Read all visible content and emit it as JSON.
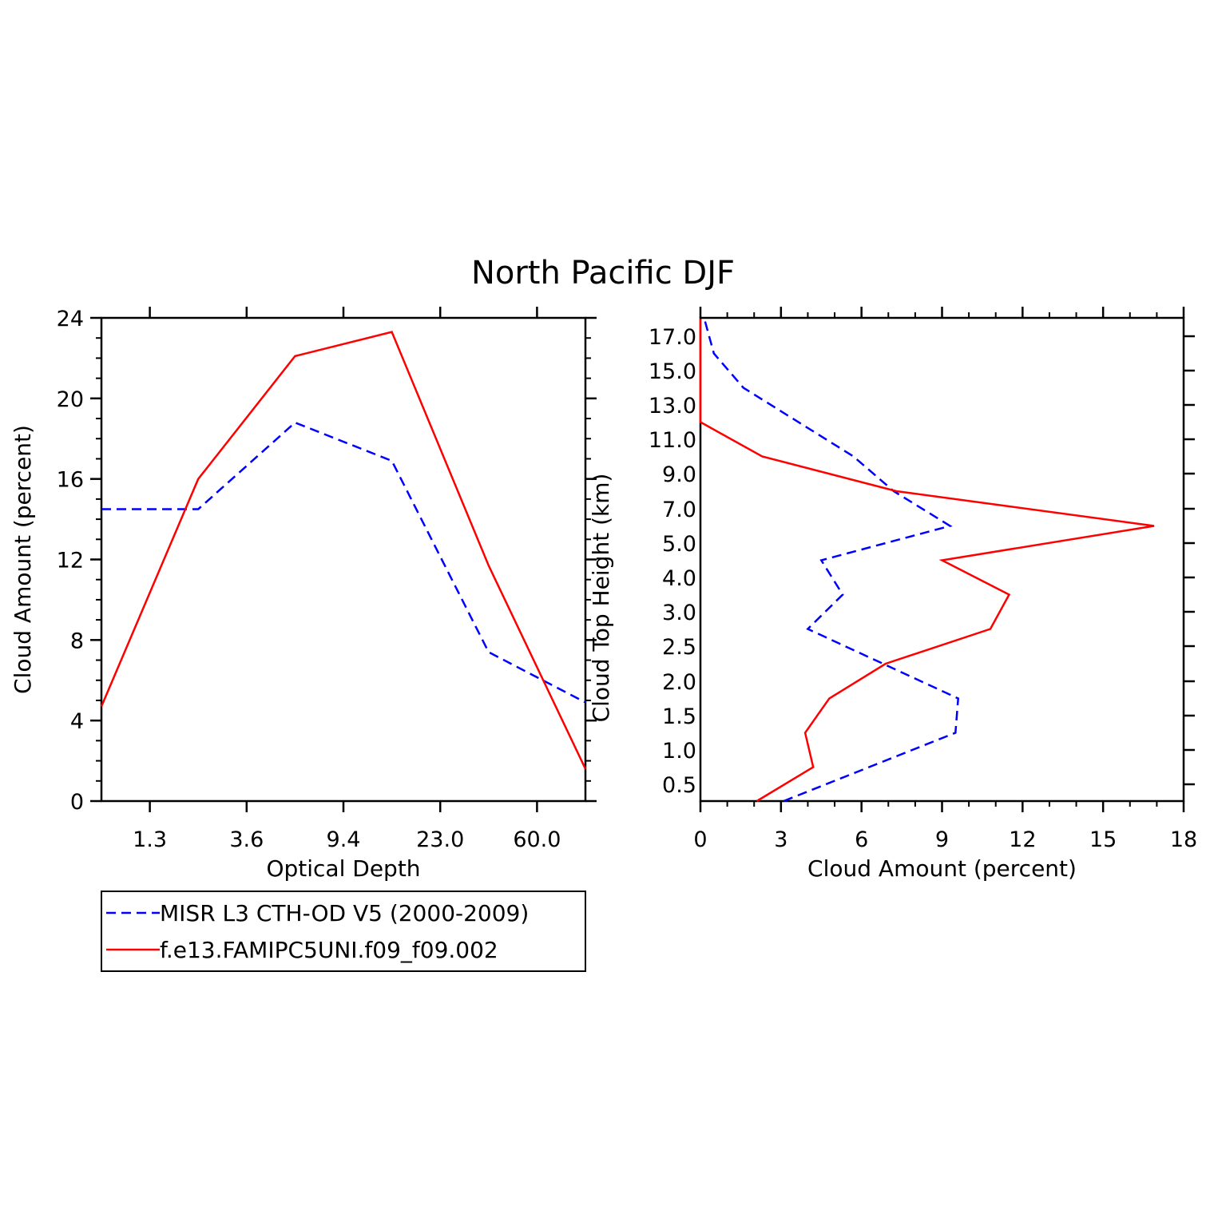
{
  "title": "North Pacific DJF",
  "colors": {
    "series_obs": "#0000ff",
    "series_model": "#ff0000",
    "axis": "#000000"
  },
  "legend": {
    "items": [
      {
        "label": "MISR L3 CTH-OD V5 (2000-2009)",
        "color": "#0000ff",
        "style": "dashed"
      },
      {
        "label": "f.e13.FAMIPC5UNI.f09_f09.002",
        "color": "#ff0000",
        "style": "solid"
      }
    ]
  },
  "chart_data": [
    {
      "type": "line",
      "xlabel": "Optical Depth",
      "ylabel": "Cloud Amount (percent)",
      "x_categories": [
        "0.15",
        "1.3",
        "2.5",
        "3.6",
        "6.5",
        "9.4",
        "15.7",
        "23.0",
        "41.5",
        "60.0",
        "80.0"
      ],
      "x_tick_labels": [
        "1.3",
        "3.6",
        "9.4",
        "23.0",
        "60.0"
      ],
      "y_ticks": [
        "0",
        "4",
        "8",
        "12",
        "16",
        "20",
        "24"
      ],
      "ylim": [
        0,
        24
      ],
      "series": [
        {
          "name": "MISR L3 CTH-OD V5 (2000-2009)",
          "style": "dashed",
          "color": "#0000ff",
          "points": [
            [
              "0.15",
              14.5
            ],
            [
              "2.5",
              14.5
            ],
            [
              "6.5",
              18.8
            ],
            [
              "15.7",
              16.9
            ],
            [
              "41.5",
              7.4
            ],
            [
              "80.0",
              4.9
            ]
          ]
        },
        {
          "name": "f.e13.FAMIPC5UNI.f09_f09.002",
          "style": "solid",
          "color": "#ff0000",
          "points": [
            [
              "0.15",
              4.7
            ],
            [
              "2.5",
              16.0
            ],
            [
              "6.5",
              22.1
            ],
            [
              "15.7",
              23.3
            ],
            [
              "41.5",
              11.7
            ],
            [
              "80.0",
              1.6
            ]
          ]
        }
      ]
    },
    {
      "type": "line",
      "orientation": "vertical",
      "xlabel": "Cloud Amount (percent)",
      "ylabel": "Cloud Top Height (km)",
      "x_ticks": [
        "0",
        "3",
        "6",
        "9",
        "12",
        "15",
        "18"
      ],
      "xlim": [
        0,
        18
      ],
      "y_categories": [
        "0.0",
        "0.5",
        "1.0",
        "1.5",
        "2.0",
        "2.5",
        "3.0",
        "4.0",
        "5.0",
        "7.0",
        "9.0",
        "11.0",
        "13.0",
        "15.0",
        "17.0"
      ],
      "y_tick_labels": [
        "0.5",
        "1.0",
        "1.5",
        "2.0",
        "2.5",
        "3.0",
        "4.0",
        "5.0",
        "7.0",
        "9.0",
        "11.0",
        "13.0",
        "15.0",
        "17.0"
      ],
      "series": [
        {
          "name": "MISR L3 CTH-OD V5 (2000-2009)",
          "style": "dashed",
          "color": "#0000ff",
          "points": [
            [
              3.1,
              0.0
            ],
            [
              9.5,
              1.25
            ],
            [
              9.6,
              1.75
            ],
            [
              4.0,
              2.75
            ],
            [
              5.3,
              3.5
            ],
            [
              4.5,
              4.5
            ],
            [
              9.3,
              6.0
            ],
            [
              7.2,
              8.0
            ],
            [
              5.7,
              10.0
            ],
            [
              1.6,
              14.0
            ],
            [
              0.5,
              16.0
            ],
            [
              0.15,
              18.0
            ]
          ]
        },
        {
          "name": "f.e13.FAMIPC5UNI.f09_f09.002",
          "style": "solid",
          "color": "#ff0000",
          "points": [
            [
              2.1,
              0.0
            ],
            [
              4.2,
              0.75
            ],
            [
              3.9,
              1.25
            ],
            [
              4.8,
              1.75
            ],
            [
              6.9,
              2.25
            ],
            [
              10.8,
              2.75
            ],
            [
              11.5,
              3.5
            ],
            [
              9.0,
              4.5
            ],
            [
              16.9,
              6.0
            ],
            [
              7.3,
              8.0
            ],
            [
              2.3,
              10.0
            ],
            [
              0.0,
              12.0
            ],
            [
              0.0,
              18.0
            ]
          ]
        }
      ]
    }
  ]
}
